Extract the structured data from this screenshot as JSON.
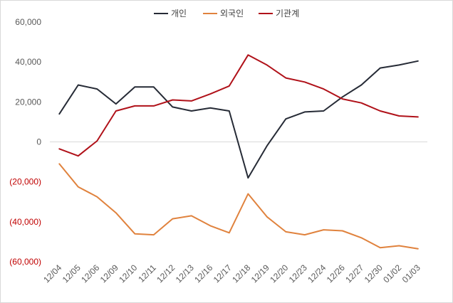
{
  "chart_data": {
    "type": "line",
    "title": "",
    "xlabel": "",
    "ylabel": "",
    "ylim": [
      -60000,
      60000
    ],
    "yticks": [
      60000,
      40000,
      20000,
      0,
      -20000,
      -40000,
      -60000
    ],
    "ytick_labels": [
      "60,000",
      "40,000",
      "20,000",
      "0",
      "(20,000)",
      "(40,000)",
      "(60,000)"
    ],
    "categories": [
      "12/04",
      "12/05",
      "12/06",
      "12/09",
      "12/10",
      "12/11",
      "12/12",
      "12/13",
      "12/16",
      "12/17",
      "12/18",
      "12/19",
      "12/20",
      "12/23",
      "12/24",
      "12/26",
      "12/27",
      "12/30",
      "01/02",
      "01/03"
    ],
    "legend_position": "top-center",
    "series": [
      {
        "name": "개인",
        "color": "#262b36",
        "values": [
          14000,
          28500,
          26500,
          19000,
          27500,
          27500,
          17500,
          15500,
          17000,
          15500,
          -18000,
          -2000,
          11500,
          15000,
          15500,
          22500,
          28500,
          37000,
          38500,
          40500
        ]
      },
      {
        "name": "외국인",
        "color": "#e0823d",
        "values": [
          -11000,
          -22500,
          -27500,
          -35500,
          -46000,
          -46500,
          -38500,
          -37000,
          -42000,
          -45500,
          -26000,
          -37500,
          -45000,
          -46500,
          -44000,
          -44500,
          -48000,
          -53000,
          -52000,
          -53500
        ]
      },
      {
        "name": "기관계",
        "color": "#b01119",
        "values": [
          -3500,
          -7000,
          500,
          15500,
          18000,
          18000,
          21000,
          20500,
          24000,
          28000,
          43500,
          38500,
          32000,
          30000,
          26500,
          21500,
          19500,
          15500,
          13000,
          12500
        ]
      }
    ]
  }
}
